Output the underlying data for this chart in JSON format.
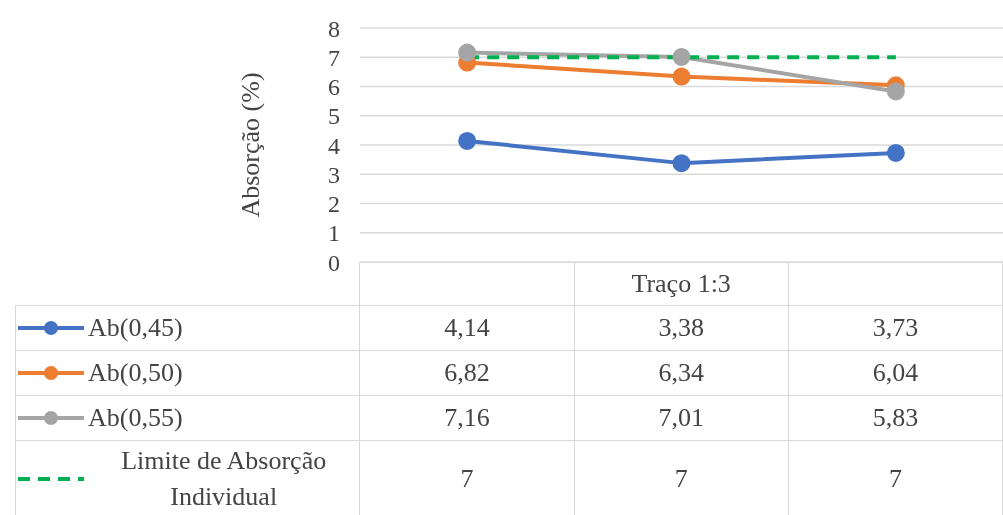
{
  "chart_data": {
    "type": "line",
    "ylabel": "Absorção (%)",
    "categories": [
      null,
      "Traço 1:3",
      null
    ],
    "series": [
      {
        "name": "Ab(0,45)",
        "color": "#4472c4",
        "values": [
          4.14,
          3.38,
          3.73
        ],
        "value_labels": [
          "4,14",
          "3,38",
          "3,73"
        ]
      },
      {
        "name": "Ab(0,50)",
        "color": "#ed7d31",
        "values": [
          6.82,
          6.34,
          6.04
        ],
        "value_labels": [
          "6,82",
          "6,34",
          "6,04"
        ]
      },
      {
        "name": "Ab(0,55)",
        "color": "#a5a5a5",
        "values": [
          7.16,
          7.01,
          5.83
        ],
        "value_labels": [
          "7,16",
          "7,01",
          "5,83"
        ]
      },
      {
        "name": "Limite de Absorção Individual",
        "color": "#00b050",
        "values": [
          7,
          7,
          7
        ],
        "value_labels": [
          "7",
          "7",
          "7"
        ],
        "line_style": "dashed",
        "marker": "none"
      }
    ],
    "ylim": [
      0,
      8
    ],
    "yticks": [
      0,
      1,
      2,
      3,
      4,
      5,
      6,
      7,
      8
    ],
    "grid": "y",
    "marker": "circle",
    "line_style": "solid",
    "legend": "bottom"
  }
}
